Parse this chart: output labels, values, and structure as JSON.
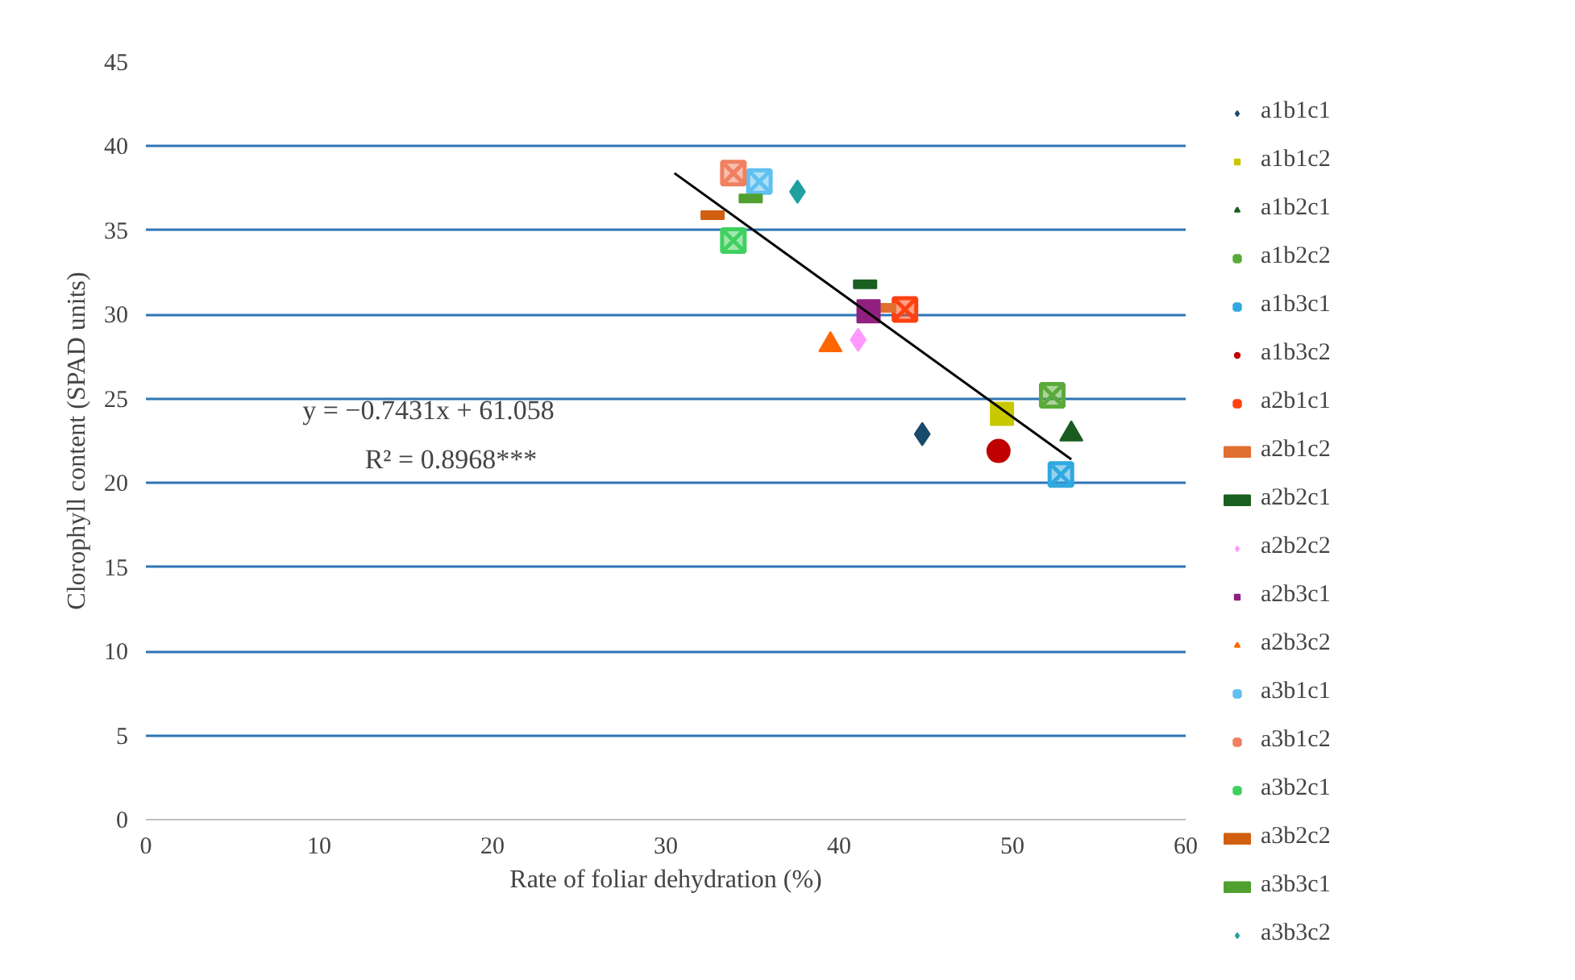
{
  "chart_data": {
    "type": "scatter",
    "xlabel": "Rate of foliar dehydration (%)",
    "ylabel": "Clorophyll content (SPAD units)",
    "xlim": [
      0,
      60
    ],
    "xticks": [
      0,
      10,
      20,
      30,
      40,
      50,
      60
    ],
    "ylim": [
      0,
      45
    ],
    "yticks": [
      0,
      5,
      10,
      15,
      20,
      25,
      30,
      35,
      40,
      45
    ],
    "grid": "y",
    "legend": "right",
    "annotations": [
      "y = −0.7431x + 61.058",
      "R² = 0.8968***"
    ],
    "series": [
      {
        "name": "a1b1c1",
        "color": "#1a4a6b",
        "marker": "diamond",
        "x": [
          44.8
        ],
        "values": [
          22.9
        ]
      },
      {
        "name": "a1b1c2",
        "color": "#c8c800",
        "marker": "square",
        "x": [
          49.4
        ],
        "values": [
          24.1
        ]
      },
      {
        "name": "a1b2c1",
        "color": "#1a5c20",
        "marker": "triangle",
        "x": [
          53.4
        ],
        "values": [
          22.9
        ]
      },
      {
        "name": "a1b2c2",
        "color": "#5aaa3a",
        "marker": "cross",
        "x": [
          52.3
        ],
        "values": [
          25.2
        ]
      },
      {
        "name": "a1b3c1",
        "color": "#30a8e0",
        "marker": "cross",
        "x": [
          52.8
        ],
        "values": [
          20.5
        ]
      },
      {
        "name": "a1b3c2",
        "color": "#c00000",
        "marker": "circle",
        "x": [
          49.2
        ],
        "values": [
          21.9
        ]
      },
      {
        "name": "a2b1c1",
        "color": "#ff4010",
        "marker": "cross",
        "x": [
          43.8
        ],
        "values": [
          30.3
        ]
      },
      {
        "name": "a2b1c2",
        "color": "#e07030",
        "x": [
          42.6
        ],
        "values": [
          30.4
        ]
      },
      {
        "name": "a2b2c1",
        "color": "#1a6020",
        "x": [
          41.5
        ],
        "values": [
          31.8
        ]
      },
      {
        "name": "a2b2c2",
        "color": "#ff99ff",
        "marker": "diamond",
        "x": [
          41.1
        ],
        "values": [
          28.5
        ]
      },
      {
        "name": "a2b3c1",
        "color": "#902080",
        "marker": "square",
        "x": [
          41.7
        ],
        "values": [
          30.2
        ]
      },
      {
        "name": "a2b3c2",
        "color": "#ff6600",
        "marker": "triangle",
        "x": [
          39.5
        ],
        "values": [
          28.2
        ]
      },
      {
        "name": "a3b1c1",
        "color": "#60c0f0",
        "marker": "cross",
        "x": [
          35.4
        ],
        "values": [
          37.9
        ]
      },
      {
        "name": "a3b1c2",
        "color": "#f08060",
        "marker": "cross",
        "x": [
          33.9
        ],
        "values": [
          38.4
        ]
      },
      {
        "name": "a3b2c1",
        "color": "#40d060",
        "marker": "cross",
        "x": [
          33.9
        ],
        "values": [
          34.4
        ]
      },
      {
        "name": "a3b2c2",
        "color": "#d06010",
        "x": [
          32.7
        ],
        "values": [
          35.9
        ]
      },
      {
        "name": "a3b3c1",
        "color": "#50a030",
        "x": [
          34.9
        ],
        "values": [
          36.9
        ]
      },
      {
        "name": "a3b3c2",
        "color": "#20a0a0",
        "marker": "diamond",
        "x": [
          37.6
        ],
        "values": [
          37.3
        ]
      },
      {
        "type": "line",
        "color": "#000000",
        "x": [
          30.5,
          53.4
        ],
        "values": [
          38.4,
          21.4
        ]
      }
    ]
  }
}
